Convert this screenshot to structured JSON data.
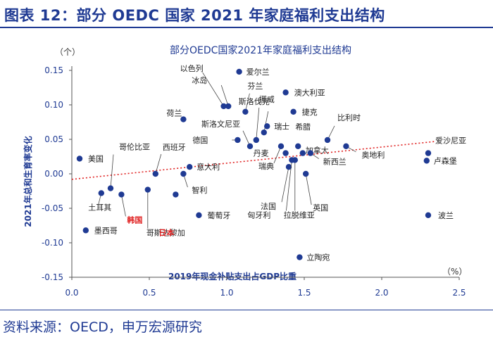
{
  "header": {
    "title": "图表 12：部分 OEDC 国家 2021 年家庭福利支出结构"
  },
  "footer": {
    "source": "资料来源：OECD，申万宏源研究"
  },
  "colors": {
    "accent": "#1f3a93",
    "point": "#1f3a93",
    "highlight": "#e02020",
    "trend": "#e02020"
  },
  "chart_data": {
    "type": "scatter",
    "title": "部分OEDC国家2021年家庭福利支出结构",
    "xlabel": "2019年现金补贴支出占GDP比重",
    "ylabel": "2021年总和生育率变化",
    "x_unit": "（%）",
    "y_unit": "（个）",
    "xlim": [
      0,
      2.5
    ],
    "ylim": [
      -0.15,
      0.15
    ],
    "xticks": [
      "0.0",
      "0.5",
      "1.0",
      "1.5",
      "2.0",
      "2.5"
    ],
    "yticks": [
      "0.15",
      "0.10",
      "0.05",
      "0.00",
      "-0.05",
      "-0.10",
      "-0.15"
    ],
    "trendline": {
      "style": "dotted",
      "from": [
        0.0,
        -0.008
      ],
      "to": [
        2.35,
        0.047
      ]
    },
    "points": [
      {
        "name": "美国",
        "x": 0.05,
        "y": 0.022
      },
      {
        "name": "墨西哥",
        "x": 0.09,
        "y": -0.082
      },
      {
        "name": "土耳其",
        "x": 0.19,
        "y": -0.028
      },
      {
        "name": "哥伦比亚",
        "x": 0.25,
        "y": -0.021
      },
      {
        "name": "韩国",
        "x": 0.32,
        "y": -0.03,
        "highlight": true
      },
      {
        "name": "哥斯达黎加",
        "x": 0.49,
        "y": -0.023
      },
      {
        "name": "西班牙",
        "x": 0.54,
        "y": 0.0
      },
      {
        "name": "日本",
        "x": 0.67,
        "y": -0.03,
        "highlight": true
      },
      {
        "name": "智利",
        "x": 0.72,
        "y": 0.0
      },
      {
        "name": "意大利",
        "x": 0.76,
        "y": 0.01
      },
      {
        "name": "荷兰",
        "x": 0.72,
        "y": 0.079
      },
      {
        "name": "葡萄牙",
        "x": 0.82,
        "y": -0.06
      },
      {
        "name": "以色列",
        "x": 0.98,
        "y": 0.098
      },
      {
        "name": "冰岛",
        "x": 1.01,
        "y": 0.098
      },
      {
        "name": "德国",
        "x": 1.07,
        "y": 0.049
      },
      {
        "name": "爱尔兰",
        "x": 1.08,
        "y": 0.148
      },
      {
        "name": "芬兰",
        "x": 1.12,
        "y": 0.09
      },
      {
        "name": "斯洛文尼亚",
        "x": 1.15,
        "y": 0.04
      },
      {
        "name": "挪威",
        "x": 1.19,
        "y": 0.049
      },
      {
        "name": "斯洛伐克",
        "x": 1.24,
        "y": 0.06
      },
      {
        "name": "瑞士",
        "x": 1.26,
        "y": 0.069
      },
      {
        "name": "瑞典",
        "x": 1.35,
        "y": 0.04
      },
      {
        "name": "丹麦",
        "x": 1.38,
        "y": 0.03
      },
      {
        "name": "法国",
        "x": 1.4,
        "y": 0.01
      },
      {
        "name": "匈牙利",
        "x": 1.42,
        "y": 0.02
      },
      {
        "name": "拉脱维亚",
        "x": 1.44,
        "y": 0.02
      },
      {
        "name": "澳大利亚",
        "x": 1.38,
        "y": 0.118
      },
      {
        "name": "捷克",
        "x": 1.43,
        "y": 0.09
      },
      {
        "name": "希腊",
        "x": 1.46,
        "y": 0.04
      },
      {
        "name": "加拿大",
        "x": 1.49,
        "y": 0.03
      },
      {
        "name": "英国",
        "x": 1.51,
        "y": 0.0
      },
      {
        "name": "新西兰",
        "x": 1.54,
        "y": 0.03
      },
      {
        "name": "立陶宛",
        "x": 1.47,
        "y": -0.121
      },
      {
        "name": "比利时",
        "x": 1.65,
        "y": 0.049
      },
      {
        "name": "奥地利",
        "x": 1.77,
        "y": 0.04
      },
      {
        "name": "爱沙尼亚",
        "x": 2.3,
        "y": 0.03
      },
      {
        "name": "卢森堡",
        "x": 2.29,
        "y": 0.019
      },
      {
        "name": "波兰",
        "x": 2.3,
        "y": -0.06
      }
    ]
  }
}
